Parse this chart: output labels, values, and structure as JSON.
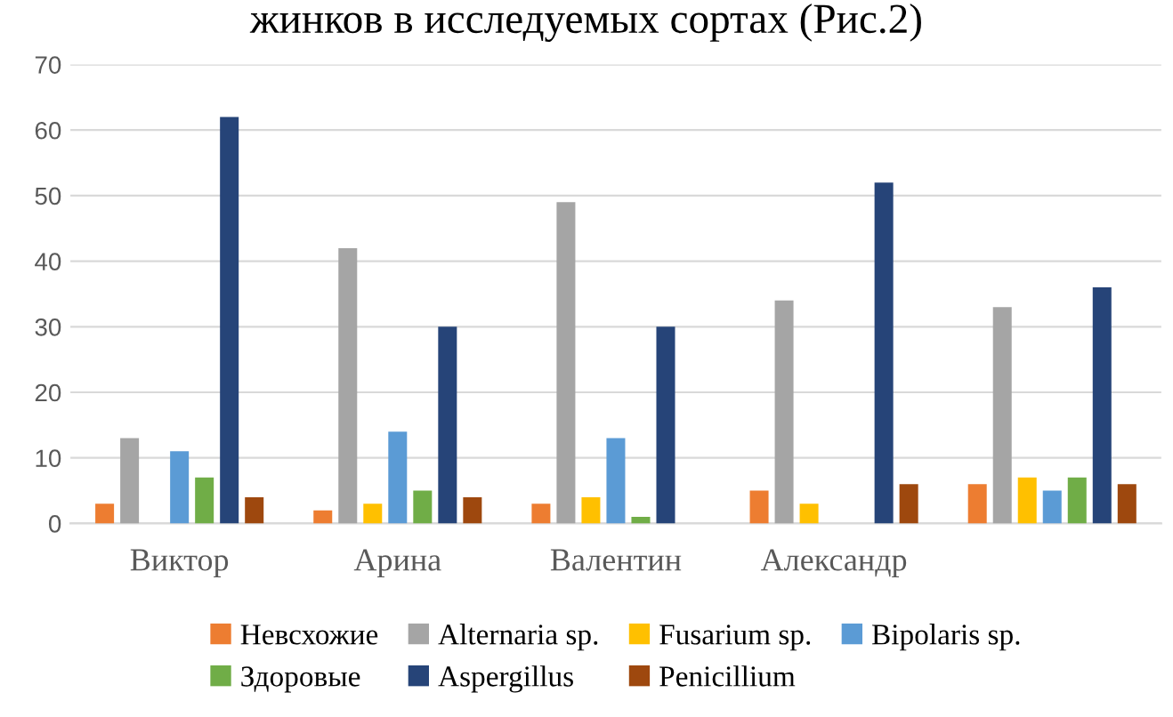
{
  "chart_data": {
    "type": "bar",
    "title": "жинков в исследуемых сортах (Рис.2)",
    "categories": [
      "Виктор",
      "Арина",
      "Валентин",
      "Александр",
      null
    ],
    "series": [
      {
        "name": "Невсхожие",
        "color": "#ed7d31",
        "values": [
          3,
          2,
          3,
          5,
          6
        ]
      },
      {
        "name": "Alternaria sp.",
        "color": "#a5a5a5",
        "values": [
          13,
          42,
          49,
          34,
          33
        ]
      },
      {
        "name": "Fusarium sp.",
        "color": "#ffc000",
        "values": [
          null,
          3,
          4,
          3,
          7
        ]
      },
      {
        "name": "Bipolaris sp.",
        "color": "#5b9bd5",
        "values": [
          11,
          14,
          13,
          null,
          5
        ]
      },
      {
        "name": "Здоровые",
        "color": "#70ad47",
        "values": [
          7,
          5,
          1,
          null,
          7
        ]
      },
      {
        "name": "Aspergillus",
        "color": "#264478",
        "values": [
          62,
          30,
          30,
          52,
          36
        ]
      },
      {
        "name": "Penicillium",
        "color": "#9e480e",
        "values": [
          4,
          4,
          null,
          6,
          6
        ]
      }
    ],
    "ylim": [
      0,
      70
    ],
    "yticks": [
      0,
      10,
      20,
      30,
      40,
      50,
      60,
      70
    ],
    "grid": "y",
    "legend": "bottom"
  }
}
